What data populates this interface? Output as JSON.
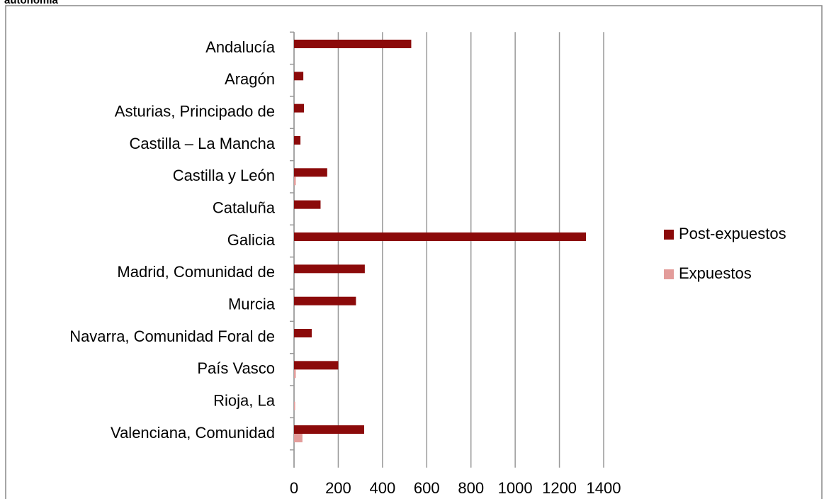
{
  "chart_data": {
    "type": "hbar",
    "title": "autonomía",
    "categories": [
      "Andalucía",
      "Aragón",
      "Asturias, Principado de",
      "Castilla – La Mancha",
      "Castilla y León",
      "Cataluña",
      "Galicia",
      "Madrid, Comunidad de",
      "Murcia",
      "Navarra, Comunidad Foral de",
      "País Vasco",
      "Rioja, La",
      "Valenciana, Comunidad"
    ],
    "series": [
      {
        "name": "Post-expuestos",
        "color": "#8b0a0a",
        "values": [
          530,
          42,
          45,
          29,
          150,
          120,
          1320,
          320,
          280,
          80,
          200,
          0,
          317
        ]
      },
      {
        "name": "Expuestos",
        "color": "#e39c9a",
        "values": [
          0,
          0,
          0,
          0,
          8,
          0,
          0,
          0,
          0,
          0,
          8,
          5,
          38
        ]
      }
    ],
    "xlim": [
      0,
      1400
    ],
    "xticks": [
      0,
      200,
      400,
      600,
      800,
      1000,
      1200,
      1400
    ],
    "grid": true,
    "legend": "right"
  }
}
